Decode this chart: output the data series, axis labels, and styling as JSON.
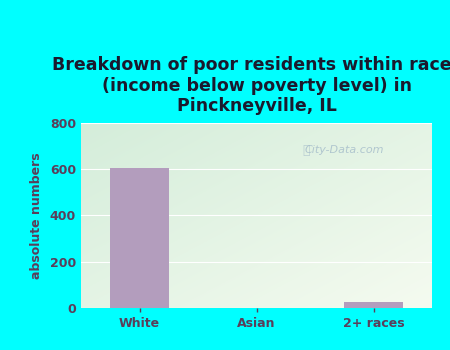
{
  "title": "Breakdown of poor residents within races\n(income below poverty level) in\nPinckneyville, IL",
  "categories": [
    "White",
    "Asian",
    "2+ races"
  ],
  "values": [
    604,
    0,
    26
  ],
  "bar_color": "#b39dbd",
  "ylabel": "absolute numbers",
  "ylim": [
    0,
    800
  ],
  "yticks": [
    0,
    200,
    400,
    600,
    800
  ],
  "bg_color": "#00ffff",
  "plot_bg_bottom_left": "#d4edda",
  "plot_bg_top_right": "#f5fbf0",
  "title_color": "#1a1a2e",
  "axis_label_color": "#5a3e5a",
  "tick_color": "#5a3e5a",
  "grid_color": "#ffffff",
  "watermark": "City-Data.com",
  "title_fontsize": 12.5,
  "ylabel_fontsize": 9,
  "tick_fontsize": 9
}
